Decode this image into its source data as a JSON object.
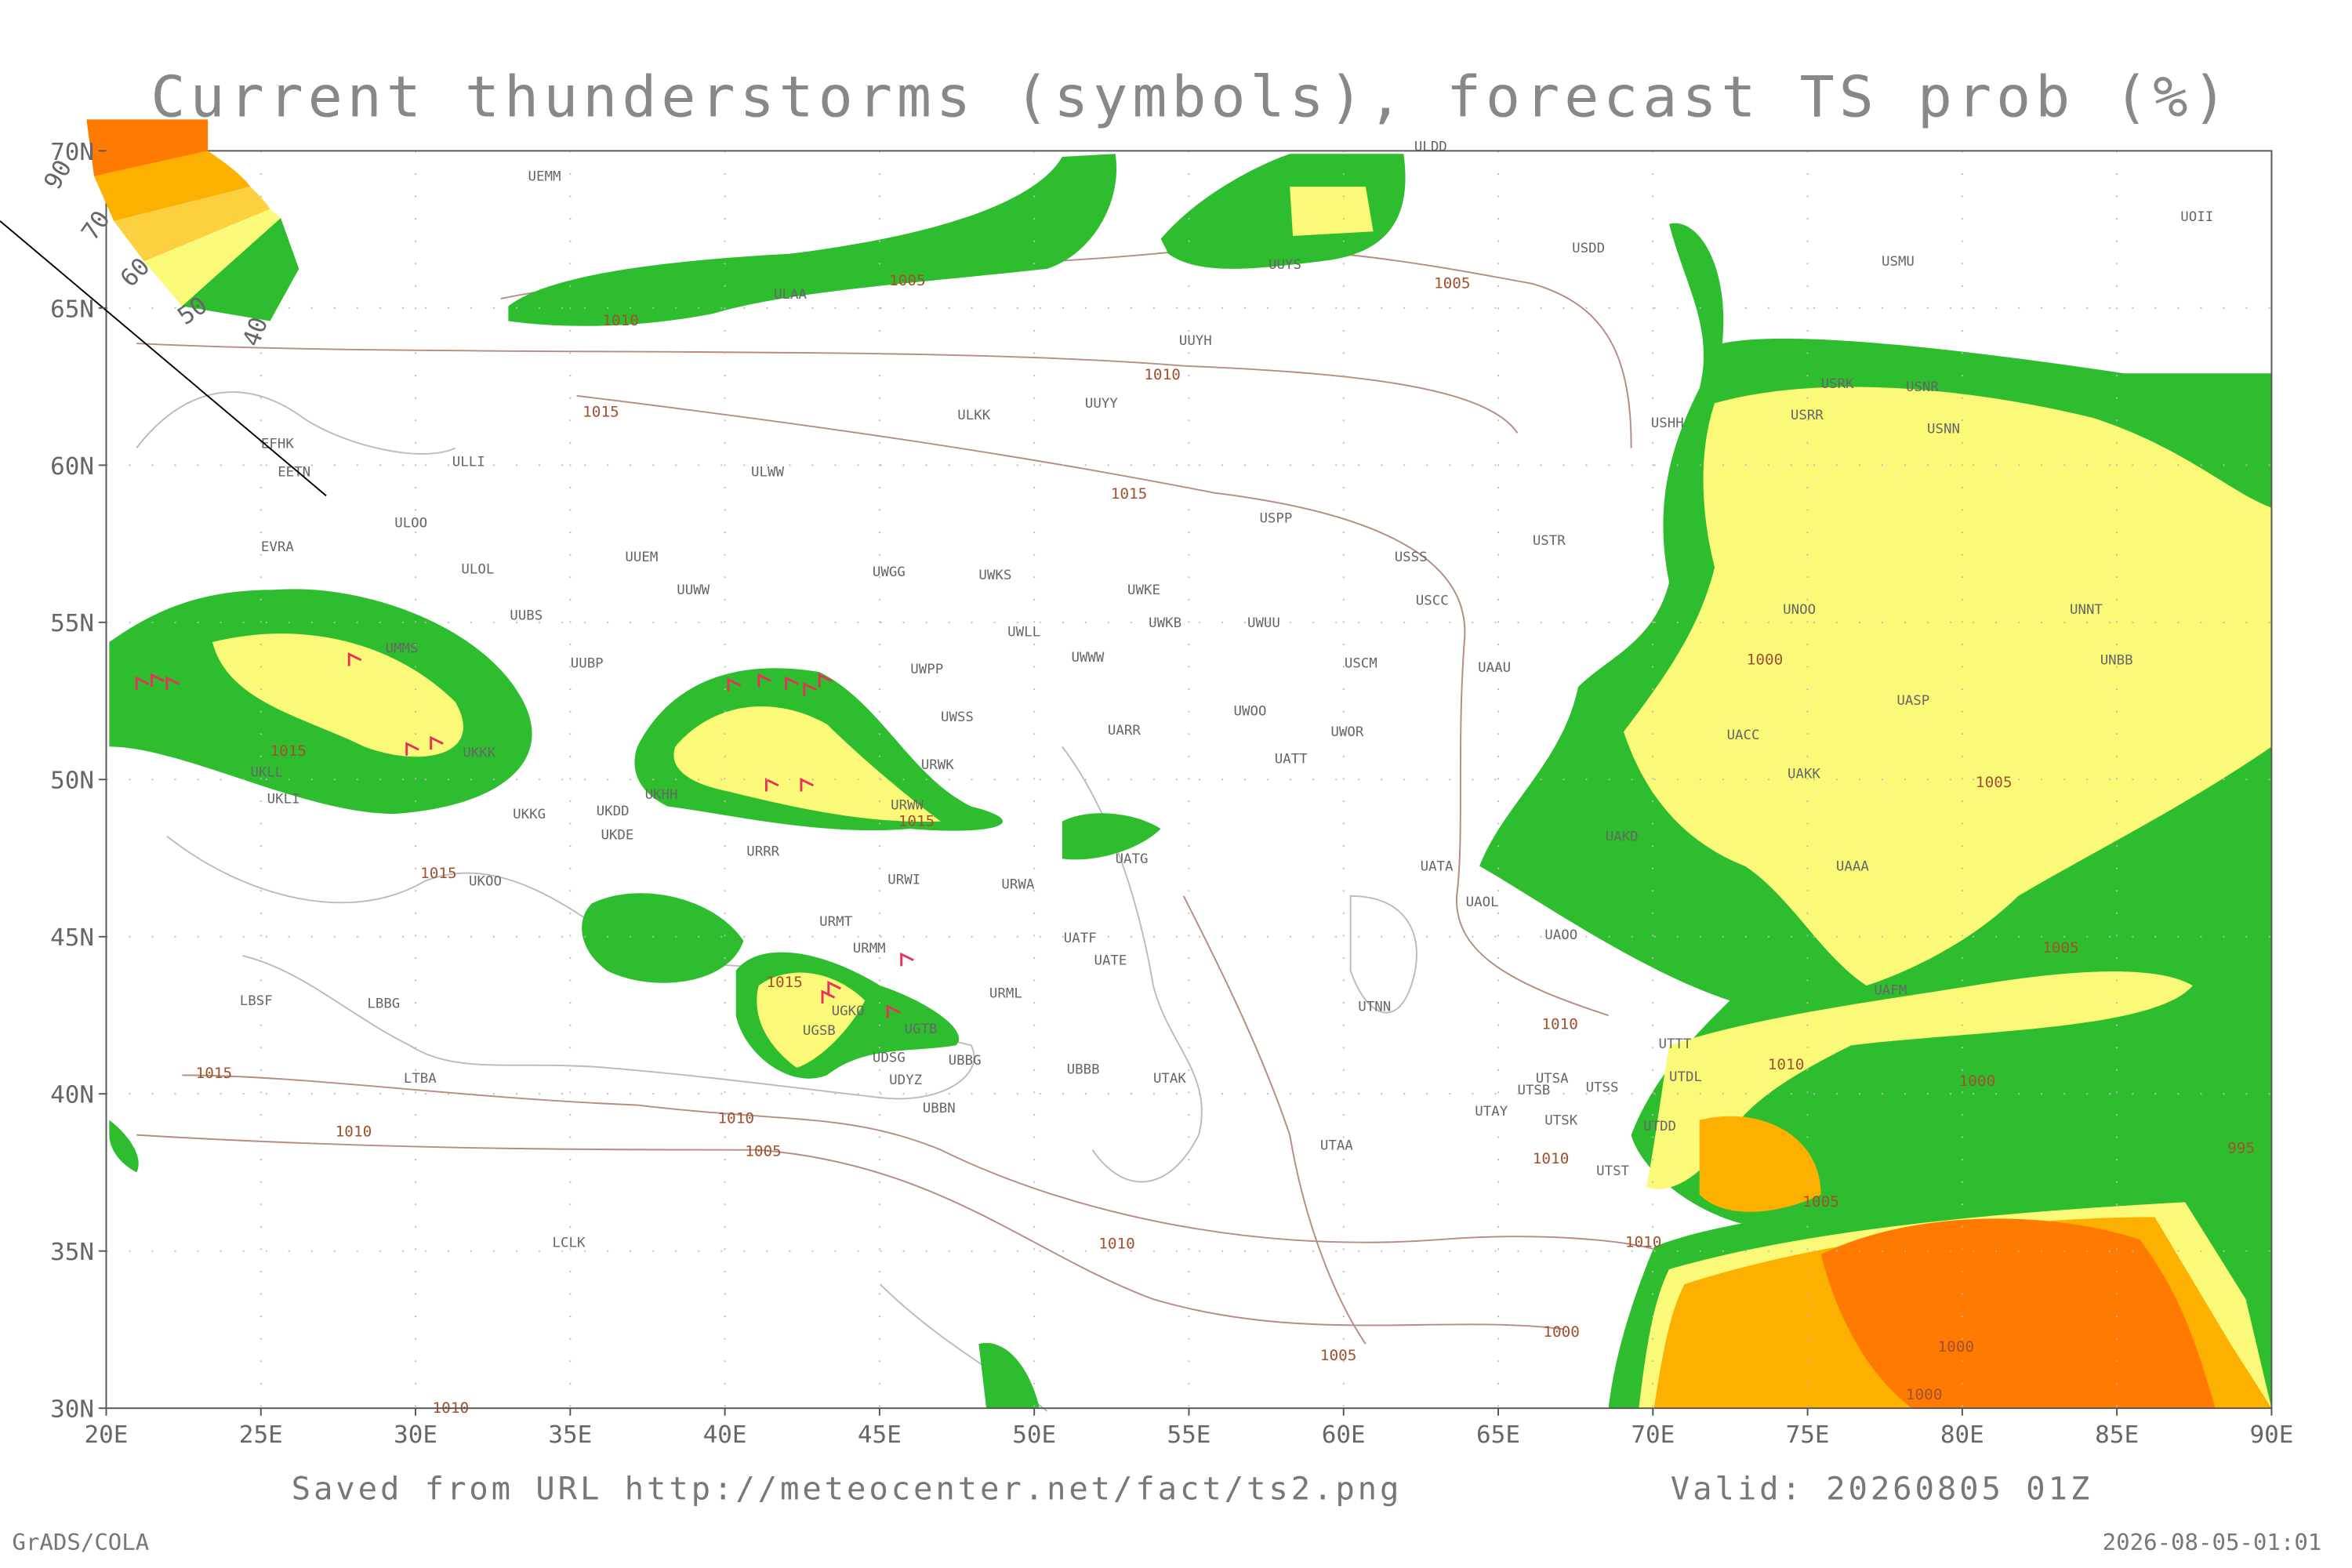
{
  "title": "Current thunderstorms (symbols), forecast TS prob (%)",
  "lon_ticks": [
    "20E",
    "25E",
    "30E",
    "35E",
    "40E",
    "45E",
    "50E",
    "55E",
    "60E",
    "65E",
    "70E",
    "75E",
    "80E",
    "85E",
    "90E"
  ],
  "lat_ticks": [
    "30N",
    "35N",
    "40N",
    "45N",
    "50N",
    "55N",
    "60N",
    "65N",
    "70N"
  ],
  "legend_labels": [
    "90",
    "70",
    "60",
    "50",
    "40"
  ],
  "stations": [
    "ULDD",
    "UEMM",
    "USDD",
    "USMU",
    "UOII",
    "UUYS",
    "ULAA",
    "UUYH",
    "USRK",
    "USNR",
    "USRR",
    "USNN",
    "ULKK",
    "UUYY",
    "USHH",
    "EFHK",
    "EETN",
    "ULLI",
    "ULWW",
    "ULOO",
    "USPP",
    "USTR",
    "EVRA",
    "UUEM",
    "ULOL",
    "UWGG",
    "UWKS",
    "USSS",
    "UUWW",
    "UWKE",
    "USCC",
    "UNOO",
    "UNNT",
    "UUBS",
    "UWKB",
    "UWUU",
    "UWLL",
    "UMMS",
    "UWWW",
    "UUBP",
    "UWPP",
    "USCM",
    "UAAU",
    "UNBB",
    "UASP",
    "UWSS",
    "UWOO",
    "UWOR",
    "UARR",
    "UACC",
    "UATT",
    "UKKK",
    "UKLL",
    "URWK",
    "UKLI",
    "UAKK",
    "UKHH",
    "URWW",
    "UKKG",
    "UKDD",
    "UKDE",
    "URRR",
    "UATG",
    "UAKD",
    "UKOO",
    "URWI",
    "URWA",
    "UATA",
    "UAAA",
    "UAOL",
    "URMT",
    "UATF",
    "UAOO",
    "URMM",
    "UATE",
    "UAFM",
    "URML",
    "LBSF",
    "LBBG",
    "UTNN",
    "UGKO",
    "UGTB",
    "UTTT",
    "UGSB",
    "UTDL",
    "UDSG",
    "UBBG",
    "UTSA",
    "UTSB",
    "UTSS",
    "UBBB",
    "LTBA",
    "UDYZ",
    "UTAK",
    "UTAY",
    "UTSK",
    "UTDD",
    "UBBN",
    "UTAA",
    "UTST",
    "LCLK"
  ],
  "isobar_labels": [
    "1005",
    "1010",
    "1005",
    "1010",
    "1015",
    "1015",
    "1000",
    "1015",
    "1005",
    "1015",
    "1015",
    "1015",
    "1005",
    "1010",
    "1010",
    "1000",
    "1015",
    "1010",
    "1010",
    "1005",
    "995",
    "1010",
    "1005",
    "1010",
    "1010",
    "1000",
    "1005",
    "1000",
    "1000",
    "1010"
  ],
  "footer": {
    "saved_from": "Saved from URL http://meteocenter.net/fact/ts2.png",
    "valid": "Valid: 20260805 01Z",
    "credit": "GrADS/COLA",
    "timestamp": "2026-08-05-01:01"
  }
}
